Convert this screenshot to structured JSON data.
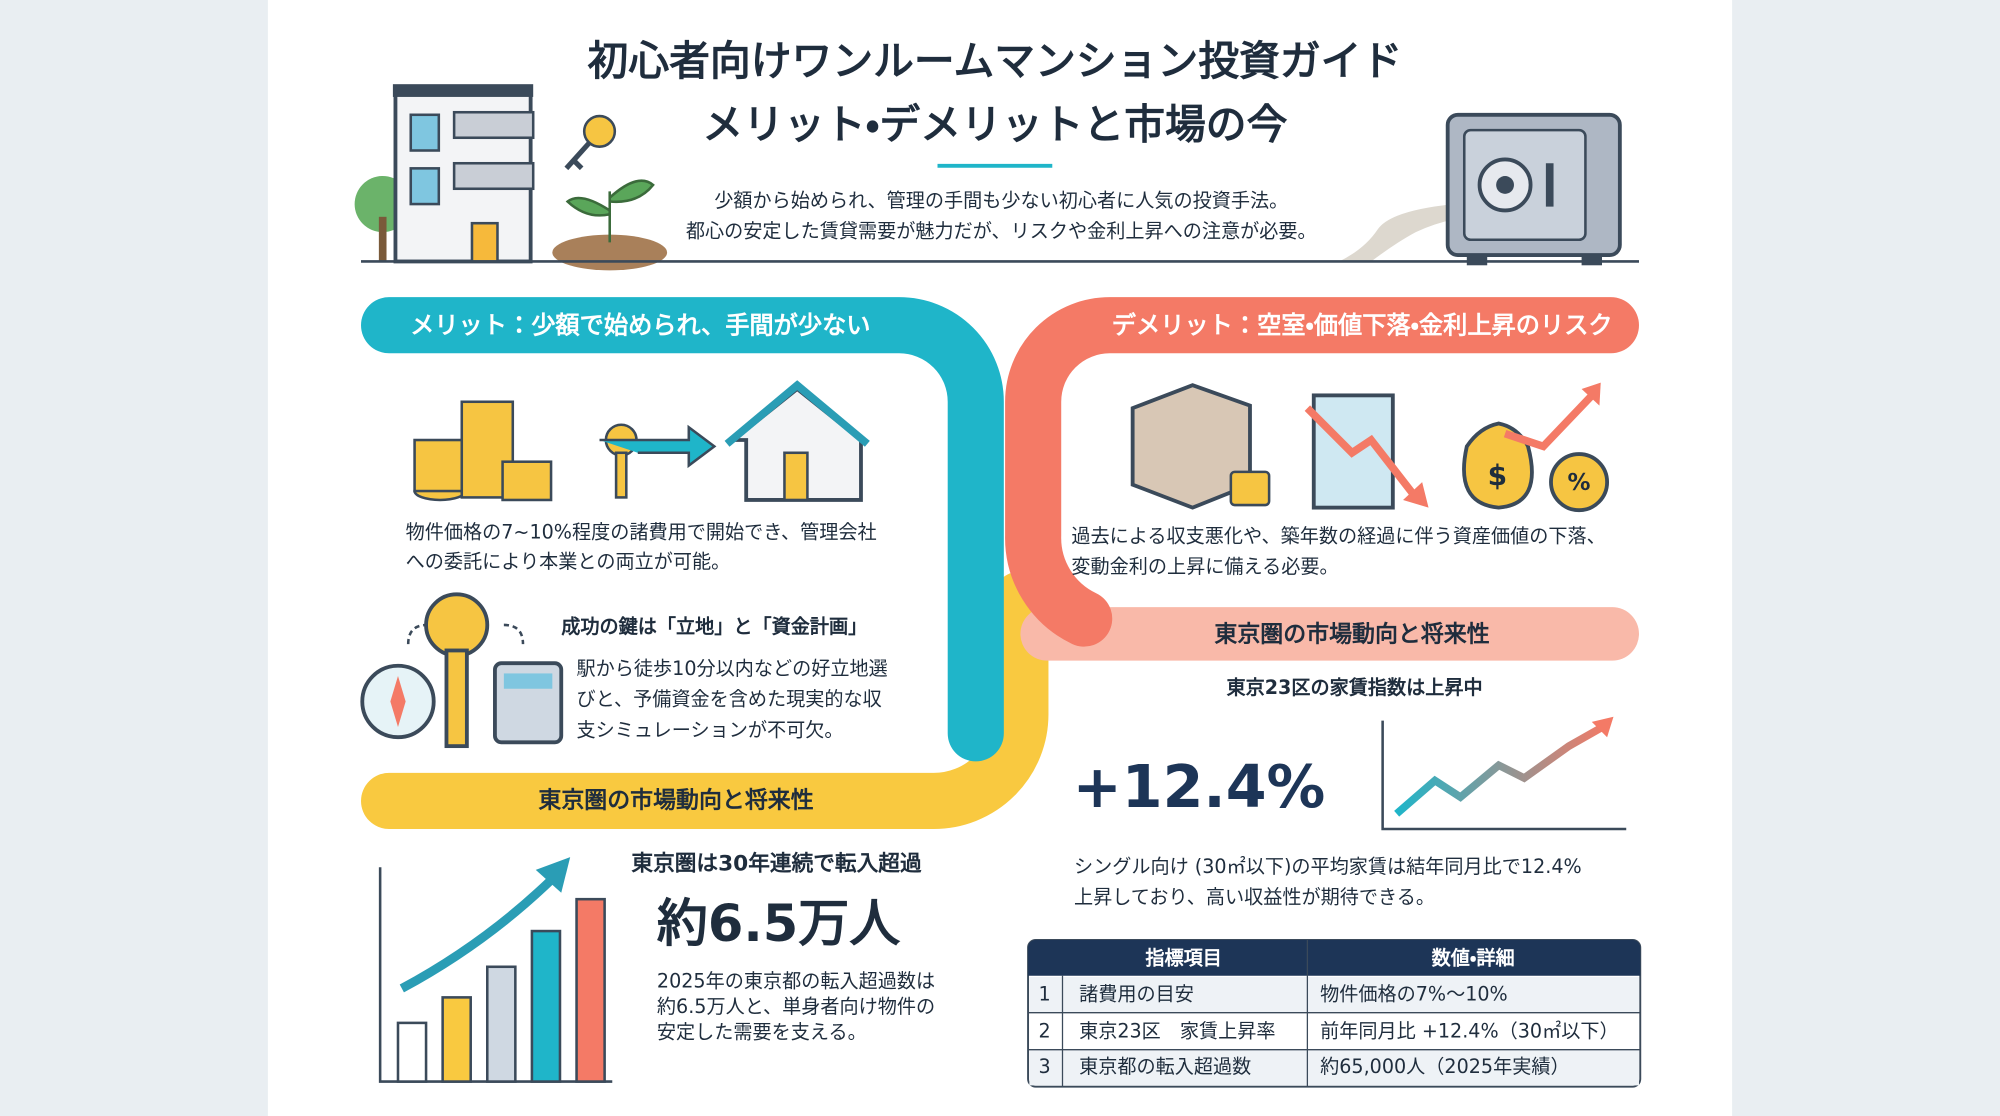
{
  "header": {
    "title": [
      "初心者向けワンルームマンション投資ガイド",
      "メリット・デメリットと市場の今"
    ],
    "intro": [
      "少額から始められ、管理の手間も少ない初心者に人気の投資手法。",
      "都心の安定した賃貸需要が魅力だが、リスクや金利上昇への注意が必要。"
    ]
  },
  "merit": {
    "heading": "メリット：少額で始められ、手間が少ない",
    "text": [
      "物件価格の7~10%程度の諸費用で開始でき、管理会社",
      "への委託により本業との両立が可能。"
    ],
    "key_heading": "成功の鍵は「立地」と「資金計画」",
    "key_text": [
      "駅から徒歩10分以内などの好立地選",
      "びと、予備資金を含めた現実的な収",
      "支シミュレーションが不可欠。"
    ]
  },
  "demerit": {
    "heading": "デメリット：空室・価値下落・金利上昇のリスク",
    "text": [
      "過去による収支悪化や、築年数の経過に伴う資産価値の下落、",
      "変動金利の上昇に備える必要。"
    ]
  },
  "market_right": {
    "heading": "東京圏の市場動向と将来性",
    "subheading": "東京23区の家賃指数は上昇中",
    "figure": "+12.4%",
    "text": [
      "シングル向け (30㎡以下)の平均家賃は結年同月比で12.4%",
      "上昇しており、高い収益性が期待できる。"
    ]
  },
  "market_left": {
    "heading": "東京圏の市場動向と将来性",
    "subheading": "東京圏は30年連続で転入超過",
    "figure": "約6.5万人",
    "text": [
      "2025年の東京都の転入超過数は",
      "約6.5万人と、単身者向け物件の",
      "安定した需要を支える。"
    ]
  },
  "table": {
    "headers": [
      "指標項目",
      "数値・詳細"
    ],
    "rows": [
      [
        "1",
        "諸費用の目安",
        "物件価格の7%〜10%"
      ],
      [
        "2",
        "東京23区　家賃上昇率",
        "前年同月比 +12.4%（30㎡以下）"
      ],
      [
        "3",
        "東京都の転入超過数",
        "約65,000人（2025年実績）"
      ]
    ]
  }
}
